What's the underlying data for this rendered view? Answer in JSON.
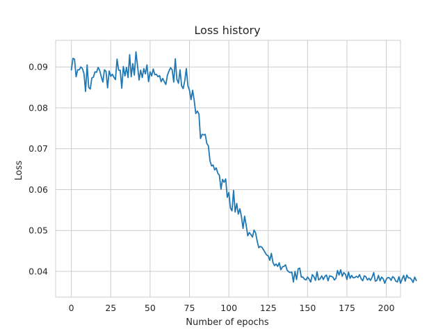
{
  "chart_data": {
    "type": "line",
    "title": "Loss history",
    "xlabel": "Number of epochs",
    "ylabel": "Loss",
    "xlim": [
      -10,
      209
    ],
    "ylim": [
      0.0337,
      0.0965
    ],
    "xticks": [
      0,
      25,
      50,
      75,
      100,
      125,
      150,
      175,
      200
    ],
    "yticks": [
      0.04,
      0.05,
      0.06,
      0.07,
      0.08,
      0.09
    ],
    "xtick_labels": [
      "0",
      "25",
      "50",
      "75",
      "100",
      "125",
      "150",
      "175",
      "200"
    ],
    "ytick_labels": [
      "0.04",
      "0.05",
      "0.06",
      "0.07",
      "0.08",
      "0.09"
    ],
    "grid": true,
    "line_color": "#1f77b4",
    "series": [
      {
        "x_start": 0,
        "x_step": 1,
        "values": [
          0.0893,
          0.0921,
          0.0919,
          0.0876,
          0.0893,
          0.0893,
          0.09,
          0.0896,
          0.0884,
          0.084,
          0.0905,
          0.085,
          0.0846,
          0.0873,
          0.0875,
          0.0888,
          0.0887,
          0.0899,
          0.0891,
          0.0876,
          0.0863,
          0.0893,
          0.0889,
          0.0849,
          0.089,
          0.0877,
          0.0882,
          0.0875,
          0.0869,
          0.0919,
          0.0892,
          0.0892,
          0.0848,
          0.0901,
          0.0878,
          0.0899,
          0.0874,
          0.093,
          0.0876,
          0.0908,
          0.088,
          0.0937,
          0.0903,
          0.0868,
          0.0892,
          0.0874,
          0.0896,
          0.0883,
          0.0905,
          0.0864,
          0.0888,
          0.0878,
          0.0895,
          0.0881,
          0.0882,
          0.0876,
          0.0879,
          0.0864,
          0.0872,
          0.0864,
          0.0857,
          0.088,
          0.089,
          0.0898,
          0.0893,
          0.0863,
          0.092,
          0.087,
          0.086,
          0.0893,
          0.0854,
          0.0847,
          0.0866,
          0.0896,
          0.0854,
          0.0843,
          0.082,
          0.0843,
          0.0818,
          0.0786,
          0.0792,
          0.0785,
          0.0725,
          0.0735,
          0.0734,
          0.0735,
          0.0713,
          0.0707,
          0.0671,
          0.0658,
          0.066,
          0.0648,
          0.0653,
          0.064,
          0.0635,
          0.0601,
          0.0625,
          0.0618,
          0.0626,
          0.0581,
          0.0593,
          0.0555,
          0.0548,
          0.0598,
          0.0545,
          0.0566,
          0.054,
          0.0553,
          0.0534,
          0.0505,
          0.0535,
          0.0513,
          0.0487,
          0.0495,
          0.049,
          0.0484,
          0.0501,
          0.0494,
          0.0474,
          0.0458,
          0.0461,
          0.0459,
          0.0453,
          0.0446,
          0.044,
          0.0438,
          0.0427,
          0.0444,
          0.0422,
          0.0414,
          0.0418,
          0.0412,
          0.0421,
          0.0404,
          0.0411,
          0.0412,
          0.0416,
          0.0403,
          0.0399,
          0.0397,
          0.0398,
          0.0374,
          0.04,
          0.038,
          0.0406,
          0.0408,
          0.0386,
          0.0386,
          0.0381,
          0.0379,
          0.0386,
          0.0381,
          0.0374,
          0.0392,
          0.0387,
          0.0378,
          0.0399,
          0.0379,
          0.0382,
          0.0389,
          0.038,
          0.0388,
          0.0391,
          0.0377,
          0.0389,
          0.0388,
          0.0386,
          0.0379,
          0.0383,
          0.0402,
          0.0391,
          0.0404,
          0.0388,
          0.0397,
          0.0393,
          0.038,
          0.0398,
          0.0383,
          0.039,
          0.0384,
          0.0385,
          0.0388,
          0.0385,
          0.0392,
          0.0382,
          0.0377,
          0.0389,
          0.0387,
          0.0379,
          0.0383,
          0.0378,
          0.0386,
          0.0397,
          0.0376,
          0.0378,
          0.039,
          0.0377,
          0.0386,
          0.0382,
          0.0371,
          0.0381,
          0.0385,
          0.0384,
          0.0378,
          0.0387,
          0.0384,
          0.0376,
          0.0374,
          0.0387,
          0.0371,
          0.0381,
          0.039,
          0.0376,
          0.0391,
          0.0384,
          0.0384,
          0.038,
          0.0373,
          0.0386,
          0.0378
        ]
      }
    ]
  }
}
